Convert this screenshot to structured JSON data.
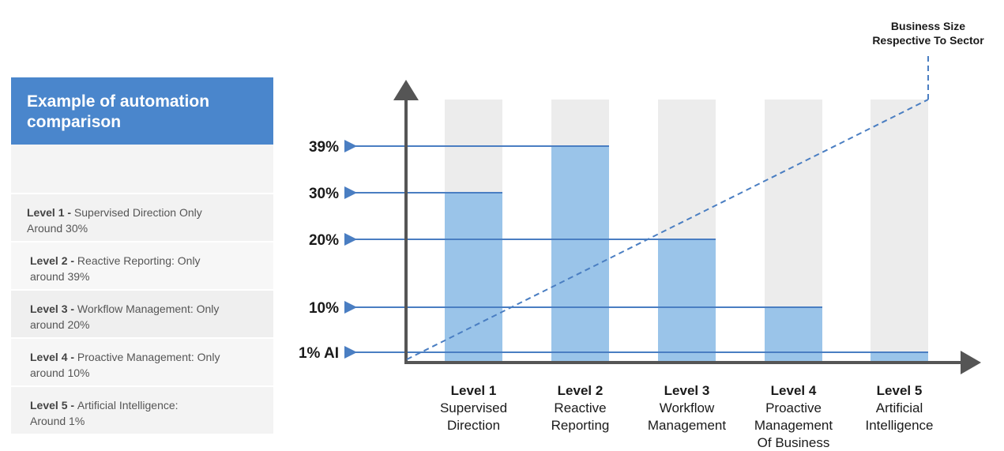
{
  "panel": {
    "title_line1": "Example of automation",
    "title_line2": "comparison",
    "levels": [
      {
        "label": "Level 1 - ",
        "desc_line1": "Supervised Direction Only",
        "desc_line2": "Around 30%"
      },
      {
        "label": "Level 2 - ",
        "desc_line1": "Reactive Reporting: Only",
        "desc_line2": "around 39%"
      },
      {
        "label": "Level 3 - ",
        "desc_line1": "Workflow Management: Only",
        "desc_line2": "around 20%"
      },
      {
        "label": "Level 4 - ",
        "desc_line1": "Proactive Management: Only",
        "desc_line2": "around 10%"
      },
      {
        "label": "Level 5 - ",
        "desc_line1": "Artificial Intelligence:",
        "desc_line2": "Around 1%"
      }
    ]
  },
  "chart_data": {
    "type": "bar",
    "categories": [
      {
        "level": "Level 1",
        "lines": [
          "Supervised",
          "Direction"
        ]
      },
      {
        "level": "Level 2",
        "lines": [
          "Reactive",
          "Reporting"
        ]
      },
      {
        "level": "Level 3",
        "lines": [
          "Workflow",
          "Management"
        ]
      },
      {
        "level": "Level 4",
        "lines": [
          "Proactive",
          "Management",
          "Of Business"
        ]
      },
      {
        "level": "Level 5",
        "lines": [
          "Artificial",
          "Intelligence"
        ]
      }
    ],
    "values": [
      30,
      39,
      20,
      10,
      1
    ],
    "tick_labels": [
      "39%",
      "30%",
      "20%",
      "10%",
      "1% AI"
    ],
    "trend_note": [
      "Business Size",
      "Respective To Sector"
    ],
    "colors": {
      "bar": "#9ac4e9",
      "background_bar": "#ececec",
      "line": "#4a7ec2",
      "axis": "#555555"
    }
  }
}
